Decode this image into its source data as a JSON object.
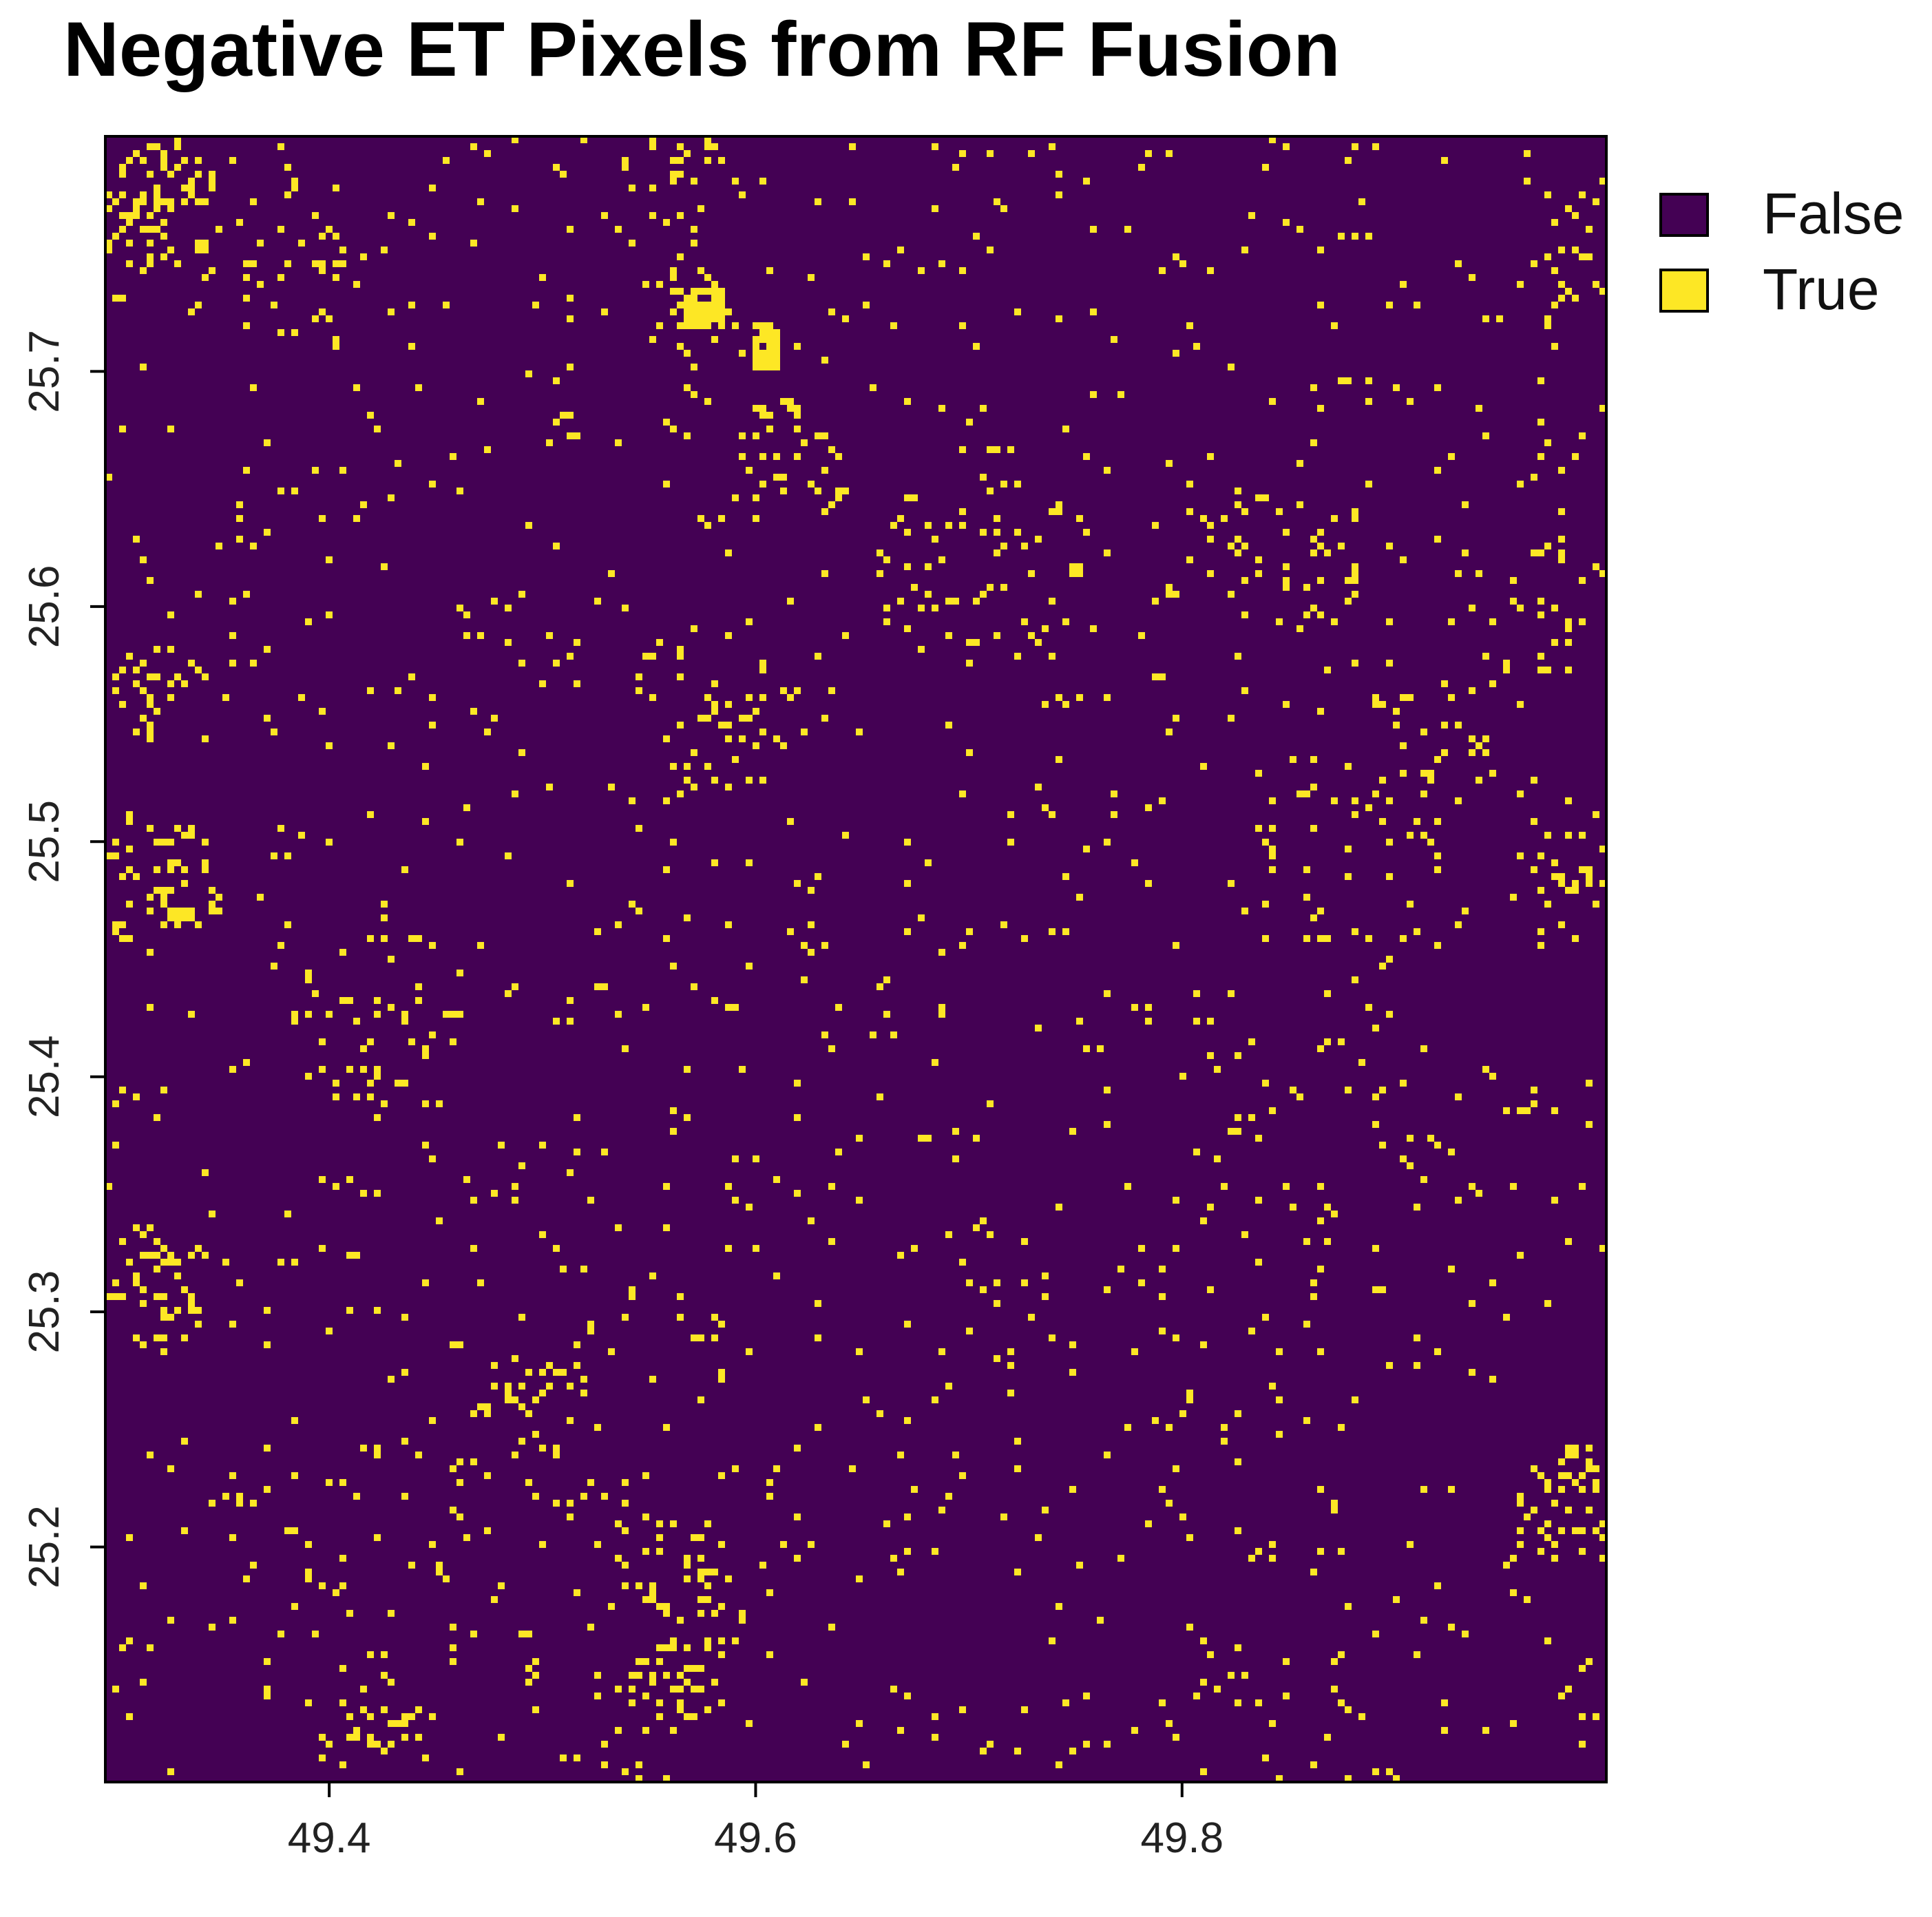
{
  "chart_data": {
    "type": "heatmap",
    "title": "Negative ET Pixels from RF Fusion",
    "xlabel": "",
    "ylabel": "",
    "xlim": [
      49.295,
      49.999
    ],
    "ylim": [
      25.1,
      25.8
    ],
    "x_ticks": [
      "49.4",
      "49.6",
      "49.8"
    ],
    "x_tick_values": [
      49.4,
      49.6,
      49.8
    ],
    "y_ticks": [
      "25.2",
      "25.3",
      "25.4",
      "25.5",
      "25.6",
      "25.7"
    ],
    "y_tick_values": [
      25.2,
      25.3,
      25.4,
      25.5,
      25.6,
      25.7
    ],
    "legend": {
      "placement": "top-right, outside plot",
      "entries": [
        {
          "label": "False",
          "color": "#440154"
        },
        {
          "label": "True",
          "color": "#FDE725"
        }
      ]
    },
    "grid": false,
    "clusters": [
      {
        "lon": 49.32,
        "lat": 25.77,
        "radius": 0.03,
        "density": 0.32
      },
      {
        "lon": 49.38,
        "lat": 25.75,
        "radius": 0.04,
        "density": 0.1
      },
      {
        "lon": 49.57,
        "lat": 25.73,
        "radius": 0.025,
        "density": 0.22
      },
      {
        "lon": 49.615,
        "lat": 25.66,
        "radius": 0.03,
        "density": 0.18
      },
      {
        "lon": 49.56,
        "lat": 25.79,
        "radius": 0.025,
        "density": 0.15
      },
      {
        "lon": 49.32,
        "lat": 25.565,
        "radius": 0.025,
        "density": 0.28
      },
      {
        "lon": 49.32,
        "lat": 25.48,
        "radius": 0.03,
        "density": 0.25
      },
      {
        "lon": 49.32,
        "lat": 25.31,
        "radius": 0.03,
        "density": 0.2
      },
      {
        "lon": 49.5,
        "lat": 25.27,
        "radius": 0.035,
        "density": 0.1
      },
      {
        "lon": 49.56,
        "lat": 25.19,
        "radius": 0.045,
        "density": 0.14
      },
      {
        "lon": 49.56,
        "lat": 25.14,
        "radius": 0.02,
        "density": 0.22
      },
      {
        "lon": 49.98,
        "lat": 25.22,
        "radius": 0.025,
        "density": 0.3
      },
      {
        "lon": 49.98,
        "lat": 25.48,
        "radius": 0.025,
        "density": 0.12
      },
      {
        "lon": 49.97,
        "lat": 25.6,
        "radius": 0.03,
        "density": 0.1
      },
      {
        "lon": 49.98,
        "lat": 25.74,
        "radius": 0.02,
        "density": 0.12
      },
      {
        "lon": 49.85,
        "lat": 25.62,
        "radius": 0.04,
        "density": 0.08
      },
      {
        "lon": 49.9,
        "lat": 25.53,
        "radius": 0.05,
        "density": 0.08
      },
      {
        "lon": 49.7,
        "lat": 25.62,
        "radius": 0.05,
        "density": 0.07
      },
      {
        "lon": 49.42,
        "lat": 25.12,
        "radius": 0.03,
        "density": 0.12
      },
      {
        "lon": 49.43,
        "lat": 25.42,
        "radius": 0.05,
        "density": 0.07
      },
      {
        "lon": 49.58,
        "lat": 25.56,
        "radius": 0.04,
        "density": 0.09
      },
      {
        "lon": 49.85,
        "lat": 25.48,
        "radius": 0.03,
        "density": 0.07
      }
    ],
    "solid_patches": [
      {
        "lon": 49.575,
        "lat": 25.728,
        "w": 0.02,
        "h": 0.018
      },
      {
        "lon": 49.605,
        "lat": 25.71,
        "w": 0.01,
        "h": 0.02
      },
      {
        "lon": 49.33,
        "lat": 25.47,
        "w": 0.012,
        "h": 0.006
      },
      {
        "lon": 49.75,
        "lat": 25.616,
        "w": 0.008,
        "h": 0.006
      }
    ],
    "background_density": 0.022
  }
}
